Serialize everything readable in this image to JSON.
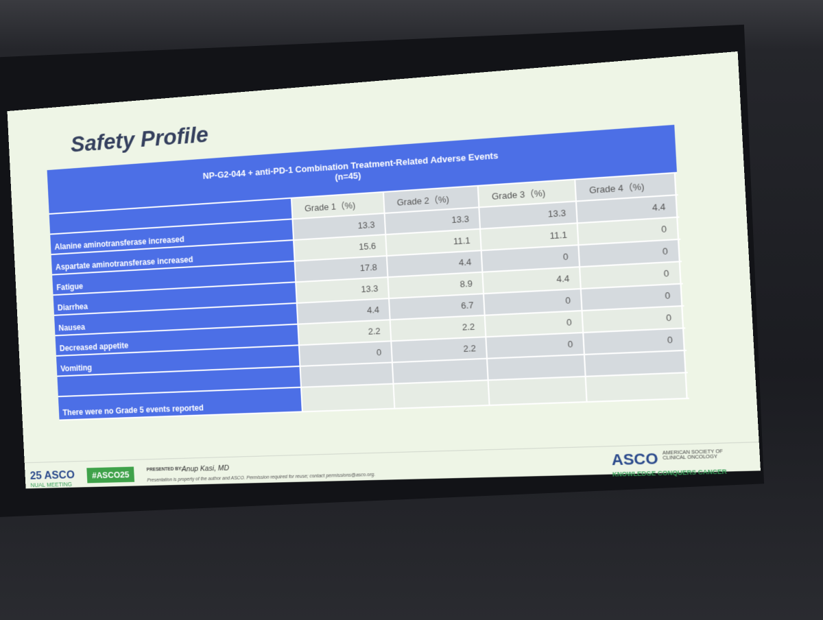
{
  "slide": {
    "title": "Safety Profile",
    "table": {
      "caption": "NP-G2-044 + anti-PD-1 Combination Treatment-Related  Adverse Events",
      "subcaption": "(n=45)",
      "columns": [
        "Grade 1（%)",
        "Grade 2（%)",
        "Grade 3（%)",
        "Grade 4（%)"
      ],
      "rows": [
        [
          "Alanine aminotransferase increased",
          13.3,
          13.3,
          13.3,
          4.4
        ],
        [
          "Aspartate aminotransferase increased",
          15.6,
          11.1,
          11.1,
          0
        ],
        [
          "Fatigue",
          17.8,
          4.4,
          0,
          0
        ],
        [
          "Diarrhea",
          13.3,
          8.9,
          4.4,
          0
        ],
        [
          "Nausea",
          4.4,
          6.7,
          0,
          0
        ],
        [
          "Decreased appetite",
          2.2,
          2.2,
          0,
          0
        ],
        [
          "Vomiting",
          0,
          2.2,
          0,
          0
        ]
      ],
      "note": "There were no Grade 5 events reported"
    },
    "footer": {
      "meeting_logo": "25 ASCO",
      "meeting_sub": "NUAL MEETING",
      "hashtag": "#ASCO25",
      "presented_by": "PRESENTED BY:",
      "presenter": "Anup Kasi, MD",
      "disclaimer": "Presentation is property of the author and ASCO. Permission required for reuse; contact permissions@asco.org.",
      "org_logo": "ASCO",
      "org_name": "AMERICAN SOCIETY OF CLINICAL ONCOLOGY",
      "tagline": "KNOWLEDGE CONQUERS CANCER"
    }
  }
}
